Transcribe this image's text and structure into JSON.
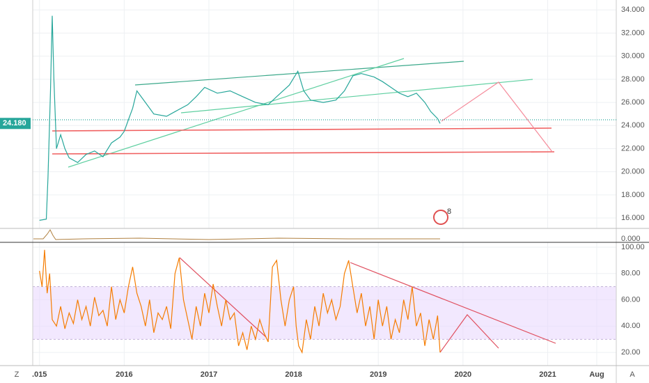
{
  "chart_data": [
    {
      "type": "line",
      "color": "#26a69a",
      "x": [
        2015.0,
        2015.08,
        2015.1,
        2015.13,
        2015.15,
        2015.17,
        2015.2,
        2015.25,
        2015.3,
        2015.35,
        2015.45,
        2015.55,
        2015.65,
        2015.75,
        2015.85,
        2015.95,
        2016.0,
        2016.05,
        2016.1,
        2016.15,
        2016.25,
        2016.35,
        2016.5,
        2016.6,
        2016.75,
        2016.85,
        2016.95,
        2017.1,
        2017.25,
        2017.4,
        2017.55,
        2017.7,
        2017.8,
        2017.95,
        2018.05,
        2018.12,
        2018.2,
        2018.35,
        2018.5,
        2018.6,
        2018.7,
        2018.8,
        2018.95,
        2019.05,
        2019.15,
        2019.25,
        2019.35,
        2019.45,
        2019.55,
        2019.62,
        2019.7,
        2019.73
      ],
      "values": [
        15.8,
        15.9,
        19.5,
        27,
        33.5,
        28,
        22,
        23.2,
        22,
        21.2,
        20.8,
        21.5,
        21.8,
        21.3,
        22.5,
        23,
        23.5,
        24.5,
        25.5,
        27,
        26,
        25,
        24.8,
        25.2,
        25.8,
        26.5,
        27.3,
        26.8,
        27,
        26.5,
        26,
        25.8,
        26.5,
        27.5,
        28.7,
        27,
        26.2,
        26,
        26.2,
        27,
        28.3,
        28.5,
        28.2,
        27.8,
        27.3,
        26.8,
        26.5,
        26.8,
        26,
        25.2,
        24.6,
        24.18
      ],
      "last_price_label": "24.180",
      "xlim": [
        2014.92,
        2021.81
      ],
      "ylim": [
        15.1,
        34.86
      ],
      "yticks": [
        {
          "value": 16,
          "label": "16.000"
        },
        {
          "value": 18,
          "label": "18.000"
        },
        {
          "value": 20,
          "label": "20.000"
        },
        {
          "value": 22,
          "label": "22.000"
        },
        {
          "value": 24,
          "label": "24.000"
        },
        {
          "value": 26,
          "label": "26.000"
        },
        {
          "value": 28,
          "label": "28.000"
        },
        {
          "value": 30,
          "label": "30.000"
        },
        {
          "value": 32,
          "label": "32.000"
        },
        {
          "value": 34,
          "label": "34.000"
        }
      ],
      "indicator_ticks": [
        {
          "value": 0,
          "label": "0.000"
        }
      ],
      "grid": true
    },
    {
      "type": "line",
      "color": "#f57c00",
      "x": [
        2015.0,
        2015.03,
        2015.06,
        2015.09,
        2015.12,
        2015.15,
        2015.2,
        2015.25,
        2015.3,
        2015.35,
        2015.4,
        2015.45,
        2015.5,
        2015.55,
        2015.6,
        2015.65,
        2015.7,
        2015.75,
        2015.8,
        2015.85,
        2015.9,
        2015.95,
        2016.0,
        2016.05,
        2016.1,
        2016.15,
        2016.2,
        2016.25,
        2016.3,
        2016.35,
        2016.4,
        2016.45,
        2016.5,
        2016.55,
        2016.6,
        2016.65,
        2016.7,
        2016.75,
        2016.8,
        2016.85,
        2016.9,
        2016.95,
        2017.0,
        2017.05,
        2017.1,
        2017.15,
        2017.2,
        2017.25,
        2017.3,
        2017.35,
        2017.4,
        2017.45,
        2017.5,
        2017.55,
        2017.6,
        2017.65,
        2017.7,
        2017.75,
        2017.8,
        2017.85,
        2017.9,
        2017.95,
        2018.0,
        2018.03,
        2018.06,
        2018.1,
        2018.15,
        2018.2,
        2018.25,
        2018.3,
        2018.35,
        2018.4,
        2018.45,
        2018.5,
        2018.55,
        2018.6,
        2018.65,
        2018.7,
        2018.75,
        2018.8,
        2018.85,
        2018.9,
        2018.95,
        2019.0,
        2019.05,
        2019.1,
        2019.15,
        2019.2,
        2019.25,
        2019.3,
        2019.35,
        2019.4,
        2019.45,
        2019.5,
        2019.55,
        2019.6,
        2019.65,
        2019.7,
        2019.73
      ],
      "values": [
        82,
        70,
        98,
        65,
        80,
        45,
        40,
        55,
        38,
        50,
        42,
        60,
        45,
        55,
        40,
        62,
        48,
        52,
        40,
        70,
        45,
        60,
        50,
        70,
        85,
        65,
        55,
        40,
        60,
        35,
        50,
        45,
        55,
        38,
        80,
        92,
        60,
        45,
        30,
        55,
        40,
        65,
        50,
        72,
        55,
        40,
        60,
        45,
        50,
        25,
        35,
        22,
        40,
        30,
        45,
        35,
        28,
        85,
        90,
        60,
        40,
        60,
        70,
        40,
        25,
        20,
        45,
        30,
        55,
        40,
        65,
        50,
        60,
        45,
        55,
        80,
        90,
        70,
        50,
        65,
        40,
        55,
        30,
        60,
        40,
        55,
        30,
        45,
        35,
        60,
        45,
        70,
        40,
        50,
        25,
        45,
        30,
        48,
        20
      ],
      "band": [
        30,
        70
      ],
      "xlim": [
        2014.92,
        2021.81
      ],
      "ylim": [
        10,
        103.7
      ],
      "yticks": [
        {
          "value": 20,
          "label": "20.00"
        },
        {
          "value": 40,
          "label": "40.00"
        },
        {
          "value": 60,
          "label": "60.00"
        },
        {
          "value": 80,
          "label": "80.00"
        },
        {
          "value": 100,
          "label": "100.00"
        }
      ],
      "xticks": [
        {
          "value": 2015,
          "label": ".015"
        },
        2016,
        2017,
        2018,
        2019,
        2020,
        2021,
        {
          "value": 2021.58,
          "label": "Aug"
        }
      ],
      "grid": true
    }
  ],
  "ui": {
    "zoom_button": "Z",
    "auto_button": "A",
    "badge": "8"
  }
}
